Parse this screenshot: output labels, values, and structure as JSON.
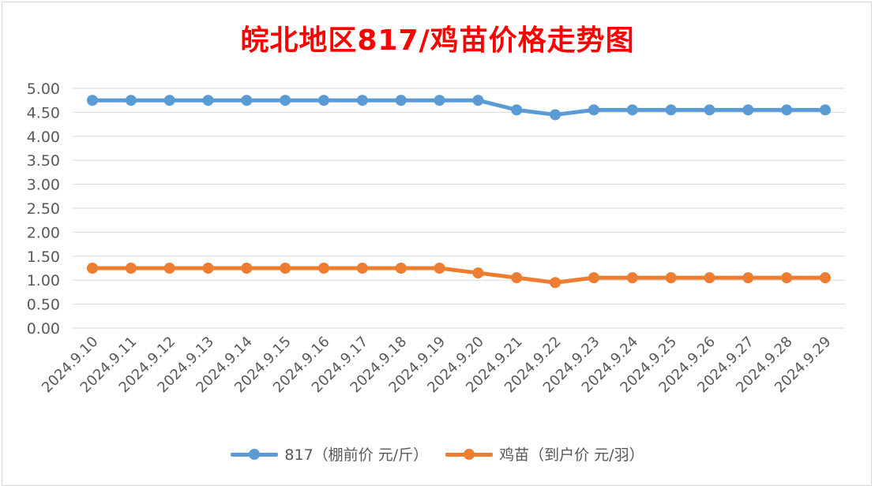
{
  "chart_data": {
    "type": "line",
    "title": "皖北地区817/鸡苗价格走势图",
    "xlabel": "",
    "ylabel": "",
    "categories": [
      "2024.9.10",
      "2024.9.11",
      "2024.9.12",
      "2024.9.13",
      "2024.9.14",
      "2024.9.15",
      "2024.9.16",
      "2024.9.17",
      "2024.9.18",
      "2024.9.19",
      "2024.9.20",
      "2024.9.21",
      "2024.9.22",
      "2024.9.23",
      "2024.9.24",
      "2024.9.25",
      "2024.9.26",
      "2024.9.27",
      "2024.9.28",
      "2024.9.29"
    ],
    "ylim": [
      0,
      5
    ],
    "yticks": [
      "0.00",
      "0.50",
      "1.00",
      "1.50",
      "2.00",
      "2.50",
      "3.00",
      "3.50",
      "4.00",
      "4.50",
      "5.00"
    ],
    "grid": true,
    "legend_position": "bottom",
    "series": [
      {
        "name": "817（棚前价 元/斤）",
        "color": "#5b9bd5",
        "values": [
          4.75,
          4.75,
          4.75,
          4.75,
          4.75,
          4.75,
          4.75,
          4.75,
          4.75,
          4.75,
          4.75,
          4.55,
          4.45,
          4.55,
          4.55,
          4.55,
          4.55,
          4.55,
          4.55,
          4.55
        ]
      },
      {
        "name": "鸡苗（到户价 元/羽）",
        "color": "#ed7d31",
        "values": [
          1.25,
          1.25,
          1.25,
          1.25,
          1.25,
          1.25,
          1.25,
          1.25,
          1.25,
          1.25,
          1.15,
          1.05,
          0.95,
          1.05,
          1.05,
          1.05,
          1.05,
          1.05,
          1.05,
          1.05
        ]
      }
    ]
  }
}
